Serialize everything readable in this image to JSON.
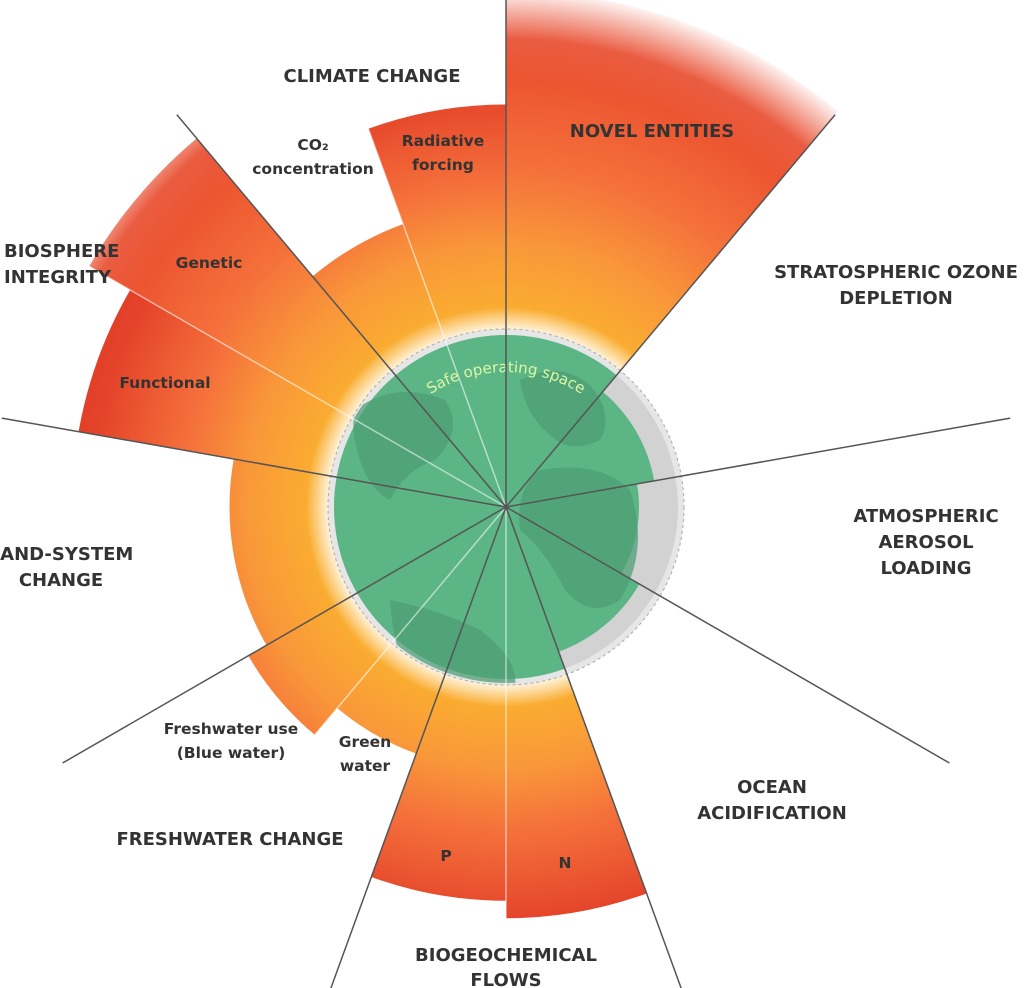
{
  "center_label": "Safe operating space",
  "colors": {
    "safe_green": "#5bb585",
    "continent_green": "#4e9e74",
    "within_boundary_grey": "#d4d4d4",
    "zone_yellow": "#fbb52c",
    "zone_orange": "#f8853a",
    "zone_red": "#dc2d20",
    "divider": "#555555"
  },
  "boundaries": [
    {
      "id": "novel-entities",
      "title": [
        "NOVEL ENTITIES"
      ],
      "sectors": [
        {
          "label": [],
          "start_deg": 0,
          "end_deg": 40,
          "level": 2.95,
          "faded": true
        }
      ]
    },
    {
      "id": "stratospheric-ozone",
      "title": [
        "STRATOSPHERIC OZONE",
        "DEPLETION"
      ],
      "sectors": [
        {
          "label": [],
          "start_deg": 40,
          "end_deg": 80,
          "level": 0.86
        }
      ]
    },
    {
      "id": "atmospheric-aerosol",
      "title": [
        "ATMOSPHERIC",
        "AEROSOL",
        "LOADING"
      ],
      "sectors": [
        {
          "label": [],
          "start_deg": 80,
          "end_deg": 120,
          "level": 0.76
        }
      ]
    },
    {
      "id": "ocean-acidification",
      "title": [
        "OCEAN",
        "ACIDIFICATION"
      ],
      "sectors": [
        {
          "label": [],
          "start_deg": 120,
          "end_deg": 160,
          "level": 0.88
        }
      ]
    },
    {
      "id": "biogeochemical-flows",
      "title": [
        "BIOGEOCHEMICAL",
        "FLOWS"
      ],
      "sectors": [
        {
          "label": [
            "N"
          ],
          "start_deg": 160,
          "end_deg": 180,
          "level": 2.35
        },
        {
          "label": [
            "P"
          ],
          "start_deg": 180,
          "end_deg": 200,
          "level": 2.25
        }
      ]
    },
    {
      "id": "freshwater-change",
      "title": [
        "FRESHWATER CHANGE"
      ],
      "sectors": [
        {
          "label": [
            "Green",
            "water"
          ],
          "start_deg": 200,
          "end_deg": 220,
          "level": 1.5
        },
        {
          "label": [
            "Freshwater use",
            "(Blue water)"
          ],
          "start_deg": 220,
          "end_deg": 240,
          "level": 1.7
        }
      ]
    },
    {
      "id": "land-system-change",
      "title": [
        "LAND-SYSTEM",
        "CHANGE"
      ],
      "sectors": [
        {
          "label": [],
          "start_deg": 240,
          "end_deg": 280,
          "level": 1.58
        }
      ]
    },
    {
      "id": "biosphere-integrity",
      "title": [
        "BIOSPHERE",
        "INTEGRITY"
      ],
      "sectors": [
        {
          "label": [
            "Functional"
          ],
          "start_deg": 280,
          "end_deg": 300,
          "level": 2.48
        },
        {
          "label": [
            "Genetic"
          ],
          "start_deg": 300,
          "end_deg": 320,
          "level": 2.75,
          "faded": true
        }
      ]
    },
    {
      "id": "climate-change",
      "title": [
        "CLIMATE CHANGE"
      ],
      "sectors": [
        {
          "label": [
            "CO₂",
            "concentration"
          ],
          "start_deg": 320,
          "end_deg": 340,
          "level": 1.72
        },
        {
          "label": [
            "Radiative",
            "forcing"
          ],
          "start_deg": 340,
          "end_deg": 360,
          "level": 2.3
        }
      ]
    }
  ]
}
